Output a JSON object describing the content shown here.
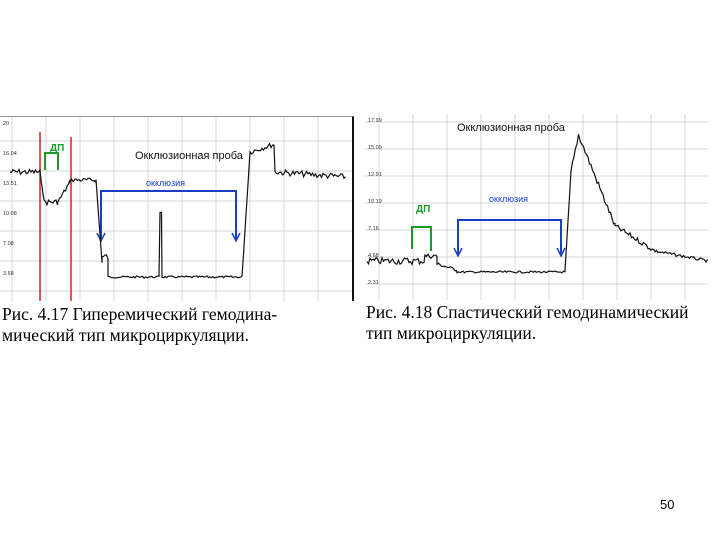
{
  "figures": [
    {
      "chart_data": {
        "type": "line",
        "title": "Окклюзионная проба",
        "annotations": [
          "ДП",
          "окклюзия"
        ],
        "y_tick_labels": [
          "20",
          "16.04",
          "13.51",
          "10.08",
          "7.08",
          "3.68"
        ],
        "grid": true
      }
    },
    {
      "chart_data": {
        "type": "line",
        "title": "Окклюзионная проба",
        "annotations": [
          "ДП",
          "окклюзия"
        ],
        "y_tick_labels": [
          "17.99",
          "15.09",
          "12.91",
          "10.19",
          "7.16",
          "4.68",
          "2.31"
        ],
        "grid": true
      }
    }
  ],
  "captions": {
    "fig1_line1": "Рис. 4.17  Гиперемический гемодина-",
    "fig1_line2": "мический тип микроциркуляции.",
    "fig2_line1": "Рис. 4.18 Спастический гемодинамический",
    "fig2_line2": "тип микроциркуляции."
  },
  "page_number": "50",
  "colors": {
    "signal": "#111111",
    "occlusion_bracket": "#1a3fc4",
    "dp_marker": "#1b9a2a",
    "marker_lines": "#d62020",
    "grid": "#c8c8c8"
  }
}
